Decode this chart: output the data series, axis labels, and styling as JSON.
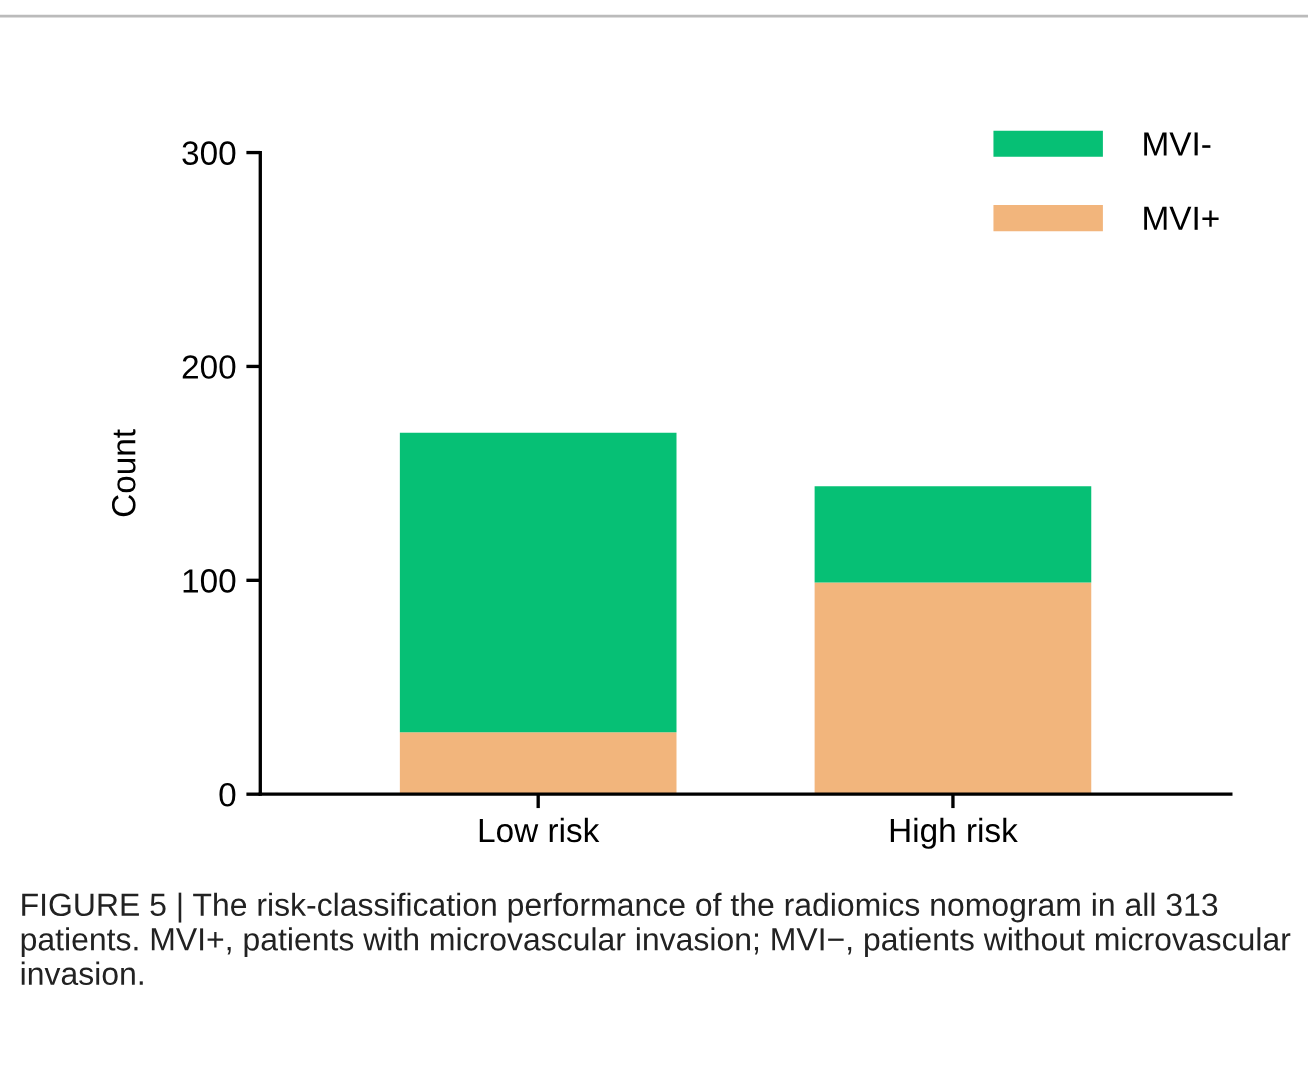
{
  "chart_data": {
    "type": "bar",
    "stacked": true,
    "ylabel": "Count",
    "categories": [
      "Low risk",
      "High risk"
    ],
    "series": [
      {
        "name": "MVI+",
        "color": "#f2b57c",
        "values": [
          29,
          99
        ]
      },
      {
        "name": "MVI-",
        "color": "#06c075",
        "values": [
          140,
          45
        ]
      }
    ],
    "ylim": [
      0,
      300
    ],
    "yticks": [
      0,
      100,
      200,
      300
    ],
    "grid": false,
    "legend": "top right",
    "annotations": [
      "FIGURE 5 | The risk-classification performance of the radiomics nomogram in all 313 patients. MVI+, patients with microvascular invasion; MVI−, patients without microvascular invasion."
    ]
  }
}
